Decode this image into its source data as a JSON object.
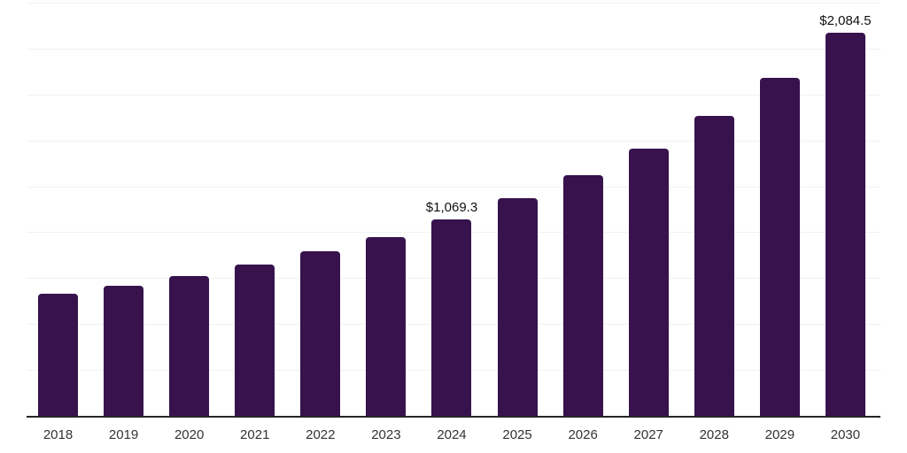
{
  "chart_data": {
    "type": "bar",
    "title": "",
    "xlabel": "",
    "ylabel": "",
    "categories": [
      "2018",
      "2019",
      "2020",
      "2021",
      "2022",
      "2023",
      "2024",
      "2025",
      "2026",
      "2027",
      "2028",
      "2029",
      "2030"
    ],
    "values": [
      663,
      709,
      762,
      822,
      895,
      975,
      1069.3,
      1184,
      1310,
      1457,
      1633,
      1840,
      2084.5
    ],
    "value_labels": [
      "",
      "",
      "",
      "",
      "",
      "",
      "$1,069.3",
      "",
      "",
      "",
      "",
      "",
      "$2,084.5"
    ],
    "ylim": [
      0,
      2250
    ],
    "gridline_step": 250,
    "grid": "horizontal",
    "y_tick_labels_visible": false,
    "legend": "none",
    "colors": {
      "bar": "#37124d",
      "axis_line": "#262626",
      "gridline": "#f1f1f1",
      "tick_label": "#333333",
      "value_label": "#111111",
      "background": "#ffffff"
    }
  }
}
